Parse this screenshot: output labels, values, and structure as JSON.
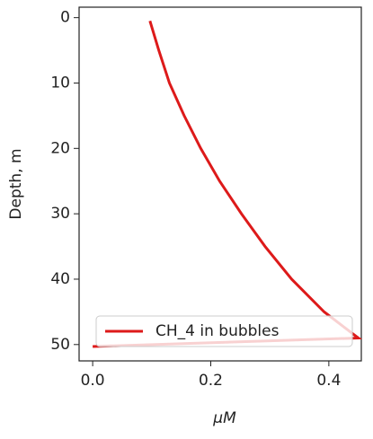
{
  "chart_data": {
    "type": "line",
    "xlabel": "μM",
    "ylabel": "Depth, m",
    "series": [
      {
        "name": "CH_4 in bubbles",
        "color": "#dd1a1a",
        "x": [
          0.097,
          0.112,
          0.13,
          0.155,
          0.183,
          0.215,
          0.252,
          0.292,
          0.337,
          0.392,
          0.45,
          0.0
        ],
        "values": [
          0.5,
          5,
          10,
          15,
          20,
          25,
          30,
          35,
          40,
          45,
          49,
          50.3
        ]
      }
    ],
    "xlim": [
      -0.023,
      0.455
    ],
    "xticks": [
      {
        "value": 0,
        "label": "0.0"
      },
      0.2,
      0.4
    ],
    "ylim": [
      -1.6,
      52.5
    ],
    "y_inverted": true,
    "yticks": [
      0,
      10,
      20,
      30,
      40,
      50
    ],
    "legend": "lower right"
  }
}
